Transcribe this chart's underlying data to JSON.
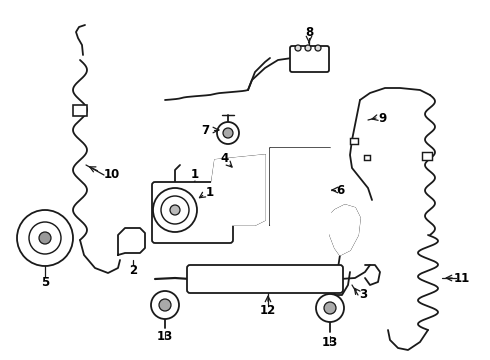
{
  "bg_color": "#ffffff",
  "line_color": "#1a1a1a",
  "label_color": "#000000",
  "lw": 1.3,
  "font_size": 8.5,
  "font_weight": "bold",
  "figsize": [
    4.9,
    3.6
  ],
  "dpi": 100
}
